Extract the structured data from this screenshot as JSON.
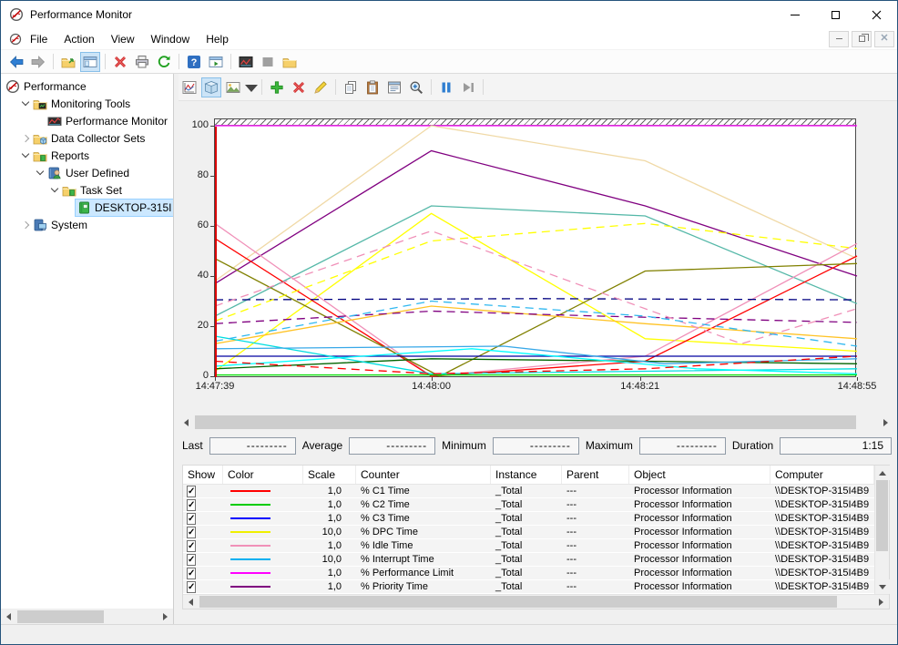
{
  "window": {
    "title": "Performance Monitor"
  },
  "menu": {
    "items": [
      "File",
      "Action",
      "View",
      "Window",
      "Help"
    ]
  },
  "main_toolbar": [
    {
      "icon": "back",
      "name": "back"
    },
    {
      "icon": "forward",
      "name": "forward"
    },
    {
      "sep": true
    },
    {
      "icon": "export",
      "name": "export"
    },
    {
      "icon": "console-window",
      "name": "show-console-tree",
      "active": true
    },
    {
      "sep": true
    },
    {
      "icon": "delete-x",
      "name": "delete"
    },
    {
      "icon": "print",
      "name": "print"
    },
    {
      "icon": "refresh",
      "name": "refresh"
    },
    {
      "sep": true
    },
    {
      "icon": "help",
      "name": "help"
    },
    {
      "icon": "action-pane",
      "name": "show-action-pane"
    },
    {
      "sep": true
    },
    {
      "icon": "perfmon-dark",
      "name": "performance-view"
    },
    {
      "icon": "gray-square",
      "name": "pause-view"
    },
    {
      "icon": "folder",
      "name": "open-folder"
    }
  ],
  "sidebar": {
    "items": [
      {
        "level": 0,
        "expander": "none",
        "icon": "perfmon",
        "label": "Performance"
      },
      {
        "level": 1,
        "expander": "down",
        "icon": "folder-chart",
        "label": "Monitoring Tools"
      },
      {
        "level": 2,
        "expander": "none",
        "icon": "chart-mini",
        "label": "Performance Monitor"
      },
      {
        "level": 1,
        "expander": "right",
        "icon": "folder-cube",
        "label": "Data Collector Sets"
      },
      {
        "level": 1,
        "expander": "down",
        "icon": "folder-green",
        "label": "Reports"
      },
      {
        "level": 2,
        "expander": "down",
        "icon": "book-user",
        "label": "User Defined"
      },
      {
        "level": 3,
        "expander": "down",
        "icon": "folder-green",
        "label": "Task Set"
      },
      {
        "level": 4,
        "expander": "none",
        "icon": "book-green",
        "label": "DESKTOP-315I4B9",
        "selected": true
      },
      {
        "level": 1,
        "expander": "right",
        "icon": "book-system",
        "label": "System"
      }
    ]
  },
  "chart_toolbar": [
    {
      "icon": "view-graph",
      "name": "view-current-activity"
    },
    {
      "icon": "cube",
      "name": "view-log-data",
      "active": true
    },
    {
      "icon": "chart-type",
      "name": "change-graph-type"
    },
    {
      "icon": "caret",
      "name": "graph-type-dropdown",
      "caret": true
    },
    {
      "sep": true
    },
    {
      "icon": "add-plus",
      "name": "add-counter"
    },
    {
      "icon": "delete-x",
      "name": "delete-counter"
    },
    {
      "icon": "pencil",
      "name": "highlight"
    },
    {
      "sep": true
    },
    {
      "icon": "copy",
      "name": "copy-properties"
    },
    {
      "icon": "paste",
      "name": "paste-counter-list"
    },
    {
      "icon": "properties",
      "name": "properties"
    },
    {
      "icon": "zoom",
      "name": "zoom"
    },
    {
      "sep": true
    },
    {
      "icon": "pause",
      "name": "freeze-display"
    },
    {
      "icon": "step",
      "name": "update-data"
    },
    {
      "sep": true
    }
  ],
  "chart_data": {
    "type": "line",
    "title": "",
    "ylim": [
      0,
      100
    ],
    "yticks": [
      100,
      80,
      60,
      40,
      20,
      0
    ],
    "grid": false,
    "legend_position": "table-below",
    "xticks": [
      {
        "label": "14:47:39",
        "pos": 0
      },
      {
        "label": "14:48:00",
        "pos": 0.337
      },
      {
        "label": "14:48:21",
        "pos": 0.662
      },
      {
        "label": "14:48:55",
        "pos": 1
      }
    ],
    "series": [
      {
        "name": "% Performance Limit",
        "color": "#ff00ff",
        "dash": false,
        "points": [
          [
            0,
            100
          ],
          [
            1,
            100
          ]
        ]
      },
      {
        "name": "unlabeled-wheat",
        "color": "#f0d9a6",
        "dash": false,
        "points": [
          [
            0,
            38
          ],
          [
            0.337,
            100
          ],
          [
            0.67,
            86
          ],
          [
            1,
            47
          ]
        ]
      },
      {
        "name": "% Priority Time",
        "color": "#800080",
        "dash": false,
        "points": [
          [
            0,
            37
          ],
          [
            0.337,
            90
          ],
          [
            0.67,
            68
          ],
          [
            1,
            40
          ]
        ]
      },
      {
        "name": "unlabeled-teal",
        "color": "#55b8a8",
        "dash": false,
        "points": [
          [
            0,
            24
          ],
          [
            0.337,
            68
          ],
          [
            0.67,
            64
          ],
          [
            1,
            29
          ]
        ]
      },
      {
        "name": "% DPC Time",
        "color": "#ffff00",
        "dash": false,
        "points": [
          [
            0,
            2
          ],
          [
            0.337,
            65
          ],
          [
            0.67,
            15
          ],
          [
            1,
            10
          ]
        ]
      },
      {
        "name": "% Idle Time",
        "color": "#f090b8",
        "dash": false,
        "points": [
          [
            0,
            61
          ],
          [
            0.337,
            0
          ],
          [
            0.67,
            8
          ],
          [
            1,
            53
          ]
        ]
      },
      {
        "name": "% C1 Time",
        "color": "#ff0000",
        "dash": false,
        "points": [
          [
            0,
            55
          ],
          [
            0.337,
            0
          ],
          [
            0.67,
            6
          ],
          [
            1,
            48
          ]
        ]
      },
      {
        "name": "unlabeled-olive",
        "color": "#808000",
        "dash": false,
        "points": [
          [
            0,
            47
          ],
          [
            0.35,
            0
          ],
          [
            0.67,
            42
          ],
          [
            1,
            45
          ]
        ]
      },
      {
        "name": "unlabeled-gold",
        "color": "#ffc327",
        "dash": false,
        "points": [
          [
            0,
            13
          ],
          [
            0.337,
            28
          ],
          [
            0.67,
            21
          ],
          [
            1,
            15
          ]
        ]
      },
      {
        "name": "% C2 Time",
        "color": "#00dd00",
        "dash": false,
        "points": [
          [
            0,
            0.5
          ],
          [
            1,
            0.5
          ]
        ]
      },
      {
        "name": "% C3 Time",
        "color": "#0000a0",
        "dash": false,
        "points": [
          [
            0,
            8
          ],
          [
            1,
            8
          ]
        ]
      },
      {
        "name": "unlabeled-darkgreen",
        "color": "#006400",
        "dash": false,
        "points": [
          [
            0,
            3
          ],
          [
            0.337,
            7
          ],
          [
            0.67,
            6
          ],
          [
            1,
            5
          ]
        ]
      },
      {
        "name": "% Interrupt Time",
        "color": "#00dde0",
        "dash": false,
        "points": [
          [
            0,
            16
          ],
          [
            0.337,
            1
          ],
          [
            0.67,
            2
          ],
          [
            1,
            3
          ]
        ]
      },
      {
        "name": "unlabeled-skyblue",
        "color": "#38a8e8",
        "dash": false,
        "points": [
          [
            0,
            11
          ],
          [
            0.45,
            12
          ],
          [
            0.7,
            5
          ],
          [
            1,
            7
          ]
        ]
      },
      {
        "name": "unlabeled-aqua",
        "color": "#00ffff",
        "dash": false,
        "points": [
          [
            0,
            4
          ],
          [
            0.4,
            11
          ],
          [
            0.75,
            3
          ],
          [
            1,
            1
          ]
        ]
      },
      {
        "name": "unlabeled-navy-dash",
        "color": "#000080",
        "dash": true,
        "points": [
          [
            0,
            30.5
          ],
          [
            0.5,
            31
          ],
          [
            1,
            30.5
          ]
        ]
      },
      {
        "name": "unlabeled-purple-dash",
        "color": "#800080",
        "dash": true,
        "points": [
          [
            0,
            21
          ],
          [
            0.337,
            26
          ],
          [
            0.6,
            24
          ],
          [
            1,
            21.5
          ]
        ]
      },
      {
        "name": "unlabeled-yellow-dash",
        "color": "#ffff00",
        "dash": true,
        "points": [
          [
            0,
            22
          ],
          [
            0.337,
            54
          ],
          [
            0.67,
            61
          ],
          [
            1,
            51
          ]
        ]
      },
      {
        "name": "unlabeled-pink-dash",
        "color": "#f090b8",
        "dash": true,
        "points": [
          [
            0,
            28
          ],
          [
            0.337,
            58
          ],
          [
            0.82,
            13
          ],
          [
            1,
            27
          ]
        ]
      },
      {
        "name": "unlabeled-skyblue-dash",
        "color": "#30b8f0",
        "dash": true,
        "points": [
          [
            0,
            14
          ],
          [
            0.337,
            30
          ],
          [
            0.67,
            24
          ],
          [
            1,
            12
          ]
        ]
      },
      {
        "name": "unlabeled-red-dash",
        "color": "#ff0000",
        "dash": true,
        "points": [
          [
            0,
            6
          ],
          [
            0.337,
            1
          ],
          [
            0.67,
            3
          ],
          [
            1,
            8
          ]
        ]
      }
    ]
  },
  "stats": {
    "fields": [
      {
        "label": "Last",
        "value": "---------"
      },
      {
        "label": "Average",
        "value": "---------"
      },
      {
        "label": "Minimum",
        "value": "---------"
      },
      {
        "label": "Maximum",
        "value": "---------"
      },
      {
        "label": "Duration",
        "value": "1:15",
        "duration": true
      }
    ]
  },
  "table": {
    "columns": [
      "Show",
      "Color",
      "Scale",
      "Counter",
      "Instance",
      "Parent",
      "Object",
      "Computer"
    ],
    "rows": [
      {
        "show": true,
        "color": "#ff0000",
        "scale": "1,0",
        "counter": "% C1 Time",
        "instance": "_Total",
        "parent": "---",
        "object": "Processor Information",
        "computer": "\\\\DESKTOP-315I4B9"
      },
      {
        "show": true,
        "color": "#00cc00",
        "scale": "1,0",
        "counter": "% C2 Time",
        "instance": "_Total",
        "parent": "---",
        "object": "Processor Information",
        "computer": "\\\\DESKTOP-315I4B9"
      },
      {
        "show": true,
        "color": "#0000ff",
        "scale": "1,0",
        "counter": "% C3 Time",
        "instance": "_Total",
        "parent": "---",
        "object": "Processor Information",
        "computer": "\\\\DESKTOP-315I4B9"
      },
      {
        "show": true,
        "color": "#f0f000",
        "scale": "10,0",
        "counter": "% DPC Time",
        "instance": "_Total",
        "parent": "---",
        "object": "Processor Information",
        "computer": "\\\\DESKTOP-315I4B9"
      },
      {
        "show": true,
        "color": "#f090b8",
        "scale": "1,0",
        "counter": "% Idle Time",
        "instance": "_Total",
        "parent": "---",
        "object": "Processor Information",
        "computer": "\\\\DESKTOP-315I4B9"
      },
      {
        "show": true,
        "color": "#00b0f0",
        "scale": "10,0",
        "counter": "% Interrupt Time",
        "instance": "_Total",
        "parent": "---",
        "object": "Processor Information",
        "computer": "\\\\DESKTOP-315I4B9"
      },
      {
        "show": true,
        "color": "#ff00ff",
        "scale": "1,0",
        "counter": "% Performance Limit",
        "instance": "_Total",
        "parent": "---",
        "object": "Processor Information",
        "computer": "\\\\DESKTOP-315I4B9"
      },
      {
        "show": true,
        "color": "#800080",
        "scale": "1,0",
        "counter": "% Priority Time",
        "instance": "_Total",
        "parent": "---",
        "object": "Processor Information",
        "computer": "\\\\DESKTOP-315I4B9"
      }
    ]
  }
}
